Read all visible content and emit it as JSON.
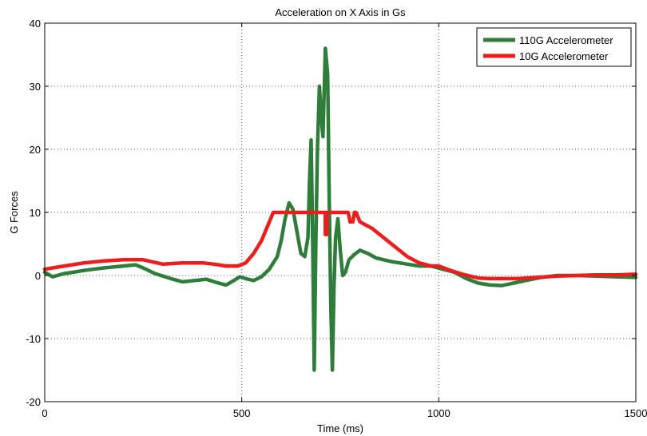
{
  "chart_data": {
    "type": "line",
    "title": "Acceleration on X Axis in Gs",
    "xlabel": "Time (ms)",
    "ylabel": "G Forces",
    "xlim": [
      0,
      1500
    ],
    "ylim": [
      -20,
      40
    ],
    "xticks": [
      0,
      500,
      1000,
      1500
    ],
    "yticks": [
      -20,
      -10,
      0,
      10,
      20,
      30,
      40
    ],
    "grid": true,
    "legend_position": "top-right",
    "series": [
      {
        "name": "110G Accelerometer",
        "color": "#2e7d3a",
        "points": [
          [
            0,
            0.5
          ],
          [
            20,
            -0.2
          ],
          [
            50,
            0.3
          ],
          [
            100,
            0.8
          ],
          [
            150,
            1.2
          ],
          [
            200,
            1.5
          ],
          [
            230,
            1.7
          ],
          [
            250,
            1.2
          ],
          [
            280,
            0.3
          ],
          [
            320,
            -0.5
          ],
          [
            350,
            -1.0
          ],
          [
            380,
            -0.8
          ],
          [
            410,
            -0.6
          ],
          [
            430,
            -1.0
          ],
          [
            460,
            -1.5
          ],
          [
            480,
            -0.8
          ],
          [
            495,
            -0.2
          ],
          [
            510,
            -0.5
          ],
          [
            530,
            -0.8
          ],
          [
            550,
            -0.2
          ],
          [
            570,
            1.0
          ],
          [
            590,
            3.0
          ],
          [
            600,
            5.5
          ],
          [
            610,
            9.0
          ],
          [
            620,
            11.5
          ],
          [
            630,
            10.5
          ],
          [
            640,
            7.0
          ],
          [
            650,
            3.5
          ],
          [
            660,
            3.0
          ],
          [
            668,
            6.0
          ],
          [
            672,
            15.0
          ],
          [
            676,
            21.5
          ],
          [
            680,
            5.0
          ],
          [
            684,
            -15.0
          ],
          [
            688,
            5.0
          ],
          [
            692,
            20.0
          ],
          [
            697,
            30.0
          ],
          [
            702,
            25.0
          ],
          [
            706,
            22.0
          ],
          [
            712,
            36.0
          ],
          [
            718,
            32.0
          ],
          [
            722,
            12.0
          ],
          [
            726,
            -5.0
          ],
          [
            730,
            -15.0
          ],
          [
            734,
            -2.0
          ],
          [
            738,
            6.0
          ],
          [
            744,
            9.0
          ],
          [
            750,
            4.0
          ],
          [
            756,
            0.0
          ],
          [
            763,
            0.5
          ],
          [
            772,
            2.5
          ],
          [
            785,
            3.3
          ],
          [
            800,
            4.0
          ],
          [
            820,
            3.5
          ],
          [
            840,
            2.8
          ],
          [
            860,
            2.5
          ],
          [
            880,
            2.2
          ],
          [
            900,
            2.0
          ],
          [
            920,
            1.8
          ],
          [
            950,
            1.5
          ],
          [
            980,
            1.5
          ],
          [
            1010,
            1.0
          ],
          [
            1040,
            0.5
          ],
          [
            1070,
            -0.5
          ],
          [
            1100,
            -1.2
          ],
          [
            1130,
            -1.5
          ],
          [
            1160,
            -1.6
          ],
          [
            1190,
            -1.2
          ],
          [
            1220,
            -0.8
          ],
          [
            1260,
            -0.3
          ],
          [
            1300,
            0.0
          ],
          [
            1350,
            0.0
          ],
          [
            1400,
            -0.1
          ],
          [
            1450,
            -0.2
          ],
          [
            1500,
            -0.3
          ]
        ]
      },
      {
        "name": "10G Accelerometer",
        "color": "#ee1c1c",
        "points": [
          [
            0,
            1.0
          ],
          [
            50,
            1.5
          ],
          [
            100,
            2.0
          ],
          [
            150,
            2.3
          ],
          [
            200,
            2.5
          ],
          [
            250,
            2.5
          ],
          [
            270,
            2.2
          ],
          [
            300,
            1.8
          ],
          [
            350,
            2.0
          ],
          [
            400,
            2.0
          ],
          [
            430,
            1.8
          ],
          [
            460,
            1.5
          ],
          [
            490,
            1.5
          ],
          [
            510,
            2.0
          ],
          [
            530,
            3.5
          ],
          [
            550,
            5.5
          ],
          [
            570,
            8.5
          ],
          [
            580,
            10.0
          ],
          [
            700,
            10.0
          ],
          [
            712,
            10.0
          ],
          [
            712,
            6.5
          ],
          [
            716,
            6.5
          ],
          [
            716,
            10.0
          ],
          [
            770,
            10.0
          ],
          [
            775,
            8.5
          ],
          [
            782,
            8.5
          ],
          [
            786,
            10.0
          ],
          [
            790,
            10.0
          ],
          [
            800,
            8.5
          ],
          [
            830,
            7.5
          ],
          [
            860,
            6.0
          ],
          [
            890,
            4.5
          ],
          [
            920,
            3.0
          ],
          [
            950,
            2.0
          ],
          [
            980,
            1.5
          ],
          [
            1000,
            1.5
          ],
          [
            1030,
            0.8
          ],
          [
            1060,
            0.2
          ],
          [
            1100,
            -0.4
          ],
          [
            1130,
            -0.5
          ],
          [
            1200,
            -0.5
          ],
          [
            1250,
            -0.3
          ],
          [
            1300,
            -0.1
          ],
          [
            1350,
            0.0
          ],
          [
            1400,
            0.1
          ],
          [
            1450,
            0.1
          ],
          [
            1500,
            0.2
          ]
        ]
      }
    ]
  }
}
